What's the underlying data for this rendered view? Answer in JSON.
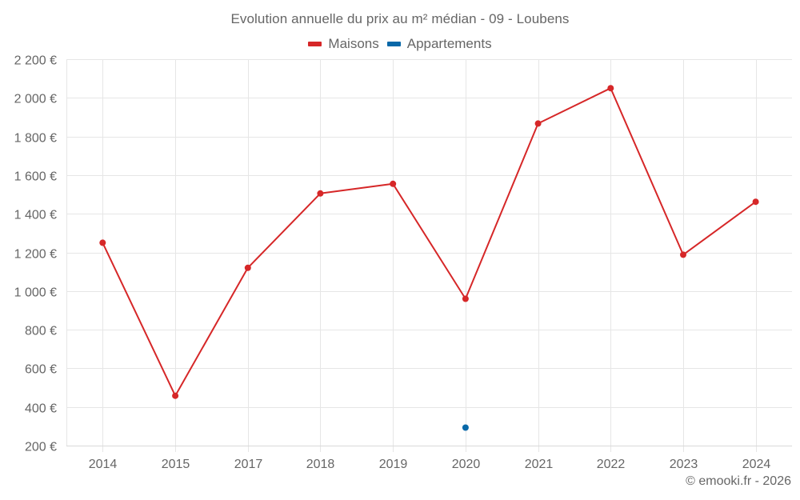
{
  "chart_data": {
    "type": "line",
    "title": "Evolution annuelle du prix au m² médian - 09 - Loubens",
    "xlabel": "",
    "ylabel": "",
    "categories": [
      "2014",
      "2015",
      "2017",
      "2018",
      "2019",
      "2020",
      "2021",
      "2022",
      "2023",
      "2024"
    ],
    "series": [
      {
        "name": "Maisons",
        "color": "#d62728",
        "values": [
          1250,
          458,
          1120,
          1505,
          1555,
          960,
          1867,
          2050,
          1188,
          1462
        ]
      },
      {
        "name": "Appartements",
        "color": "#0868a8",
        "values": [
          null,
          null,
          null,
          null,
          null,
          293,
          null,
          null,
          null,
          null
        ]
      }
    ],
    "ylim": [
      200,
      2200
    ],
    "yticks": [
      200,
      400,
      600,
      800,
      1000,
      1200,
      1400,
      1600,
      1800,
      2000,
      2200
    ],
    "ytick_labels": [
      "200 €",
      "400 €",
      "600 €",
      "800 €",
      "1 000 €",
      "1 200 €",
      "1 400 €",
      "1 600 €",
      "1 800 €",
      "2 000 €",
      "2 200 €"
    ],
    "grid": true,
    "legend_position": "top-center"
  },
  "title": "Evolution annuelle du prix au m² médian - 09 - Loubens",
  "legend": {
    "items": [
      {
        "label": "Maisons",
        "color": "#d62728"
      },
      {
        "label": "Appartements",
        "color": "#0868a8"
      }
    ]
  },
  "credit": "© emooki.fr - 2026",
  "colors": {
    "grid": "#e6e6e6",
    "axis": "#d8d8d8",
    "text": "#666666"
  }
}
